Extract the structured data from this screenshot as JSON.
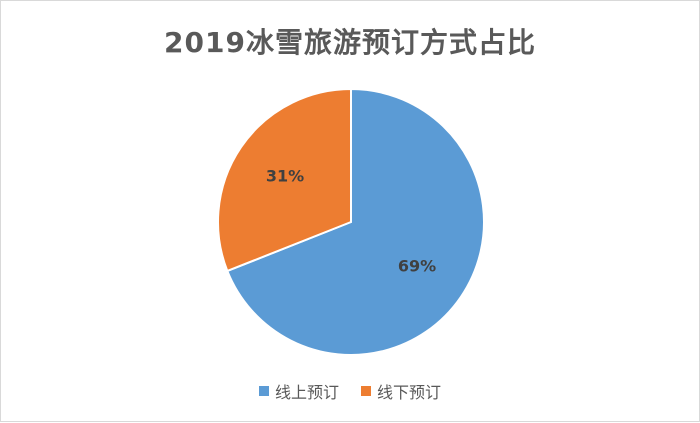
{
  "chart_data": {
    "type": "pie",
    "title": "2019冰雪旅游预订方式占比",
    "categories": [
      "线上预订",
      "线下预订"
    ],
    "values": [
      69,
      31
    ],
    "labels": [
      "69%",
      "31%"
    ],
    "colors": [
      "#5B9BD5",
      "#ED7D31"
    ],
    "legend_position": "bottom"
  }
}
